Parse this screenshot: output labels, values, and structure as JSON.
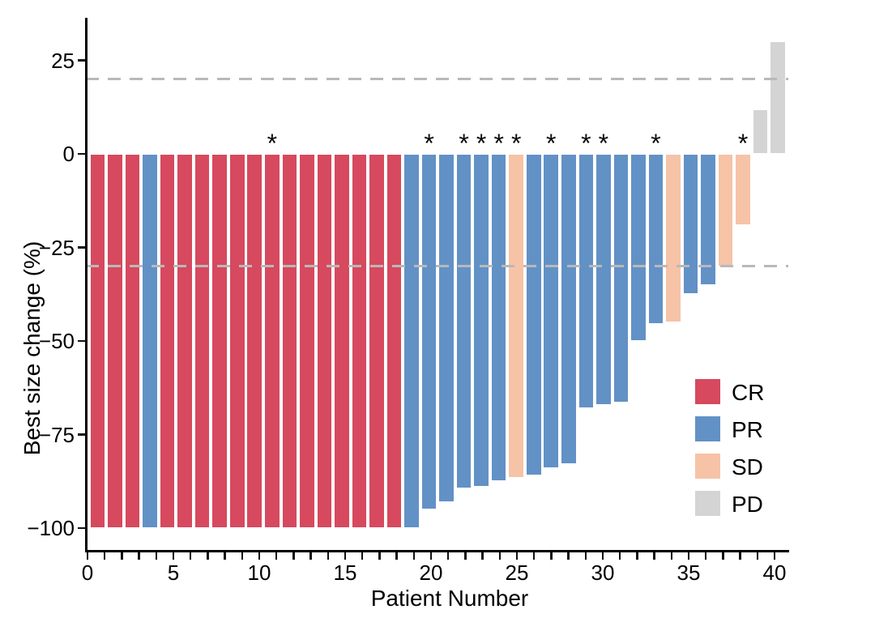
{
  "chart_data": {
    "type": "bar",
    "title": "",
    "xlabel": "Patient Number",
    "ylabel": "Best size change (%)",
    "x_range": [
      0,
      40
    ],
    "x_tick_step_labeled": 5,
    "x_minor_tick_every": 1,
    "x_tick_labels": [
      "0",
      "5",
      "10",
      "15",
      "20",
      "25",
      "30",
      "35",
      "40"
    ],
    "y_ticks": [
      {
        "value": 25,
        "label": "25"
      },
      {
        "value": 0,
        "label": "0"
      },
      {
        "value": -25,
        "label": "−25"
      },
      {
        "value": -50,
        "label": "−50"
      },
      {
        "value": -75,
        "label": "−75"
      },
      {
        "value": -100,
        "label": "−100"
      }
    ],
    "ylim": [
      -106,
      39
    ],
    "grid": false,
    "thresholds": [
      {
        "value": 20,
        "style": "dashed",
        "color": "#b9b9b9"
      },
      {
        "value": -30,
        "style": "dashed",
        "color": "#b9b9b9"
      }
    ],
    "annotation_symbol": "*",
    "legend": {
      "position": "inside-right-lower",
      "items": [
        {
          "label": "CR",
          "color": "#d6495e"
        },
        {
          "label": "PR",
          "color": "#6291c6"
        },
        {
          "label": "SD",
          "color": "#f6c3a7"
        },
        {
          "label": "PD",
          "color": "#d4d4d4"
        }
      ]
    },
    "patients": [
      {
        "n": 1,
        "value": -100,
        "response": "CR",
        "star": false
      },
      {
        "n": 2,
        "value": -100,
        "response": "CR",
        "star": false
      },
      {
        "n": 3,
        "value": -100,
        "response": "CR",
        "star": false
      },
      {
        "n": 4,
        "value": -100,
        "response": "PR",
        "star": false
      },
      {
        "n": 5,
        "value": -100,
        "response": "CR",
        "star": false
      },
      {
        "n": 6,
        "value": -100,
        "response": "CR",
        "star": false
      },
      {
        "n": 7,
        "value": -100,
        "response": "CR",
        "star": false
      },
      {
        "n": 8,
        "value": -100,
        "response": "CR",
        "star": false
      },
      {
        "n": 9,
        "value": -100,
        "response": "CR",
        "star": false
      },
      {
        "n": 10,
        "value": -100,
        "response": "CR",
        "star": false
      },
      {
        "n": 11,
        "value": -100,
        "response": "CR",
        "star": true
      },
      {
        "n": 12,
        "value": -100,
        "response": "CR",
        "star": false
      },
      {
        "n": 13,
        "value": -100,
        "response": "CR",
        "star": false
      },
      {
        "n": 14,
        "value": -100,
        "response": "CR",
        "star": false
      },
      {
        "n": 15,
        "value": -100,
        "response": "CR",
        "star": false
      },
      {
        "n": 16,
        "value": -100,
        "response": "CR",
        "star": false
      },
      {
        "n": 17,
        "value": -100,
        "response": "CR",
        "star": false
      },
      {
        "n": 18,
        "value": -100,
        "response": "CR",
        "star": false
      },
      {
        "n": 19,
        "value": -100,
        "response": "PR",
        "star": false
      },
      {
        "n": 20,
        "value": -95,
        "response": "PR",
        "star": true
      },
      {
        "n": 21,
        "value": -93,
        "response": "PR",
        "star": false
      },
      {
        "n": 22,
        "value": -89.5,
        "response": "PR",
        "star": true
      },
      {
        "n": 23,
        "value": -89,
        "response": "PR",
        "star": true
      },
      {
        "n": 24,
        "value": -87.5,
        "response": "PR",
        "star": true
      },
      {
        "n": 25,
        "value": -86.5,
        "response": "SD",
        "star": true
      },
      {
        "n": 26,
        "value": -86,
        "response": "PR",
        "star": false
      },
      {
        "n": 27,
        "value": -84,
        "response": "PR",
        "star": true
      },
      {
        "n": 28,
        "value": -83,
        "response": "PR",
        "star": false
      },
      {
        "n": 29,
        "value": -68,
        "response": "PR",
        "star": true
      },
      {
        "n": 30,
        "value": -67,
        "response": "PR",
        "star": true
      },
      {
        "n": 31,
        "value": -66.5,
        "response": "PR",
        "star": false
      },
      {
        "n": 32,
        "value": -50,
        "response": "PR",
        "star": false
      },
      {
        "n": 33,
        "value": -45.5,
        "response": "PR",
        "star": true
      },
      {
        "n": 34,
        "value": -45,
        "response": "SD",
        "star": false
      },
      {
        "n": 35,
        "value": -37.5,
        "response": "PR",
        "star": false
      },
      {
        "n": 36,
        "value": -35,
        "response": "PR",
        "star": false
      },
      {
        "n": 37,
        "value": -30,
        "response": "SD",
        "star": false
      },
      {
        "n": 38,
        "value": -19,
        "response": "SD",
        "star": true
      },
      {
        "n": 39,
        "value": 12,
        "response": "PD",
        "star": false
      },
      {
        "n": 40,
        "value": 30,
        "response": "PD",
        "star": false
      }
    ]
  }
}
